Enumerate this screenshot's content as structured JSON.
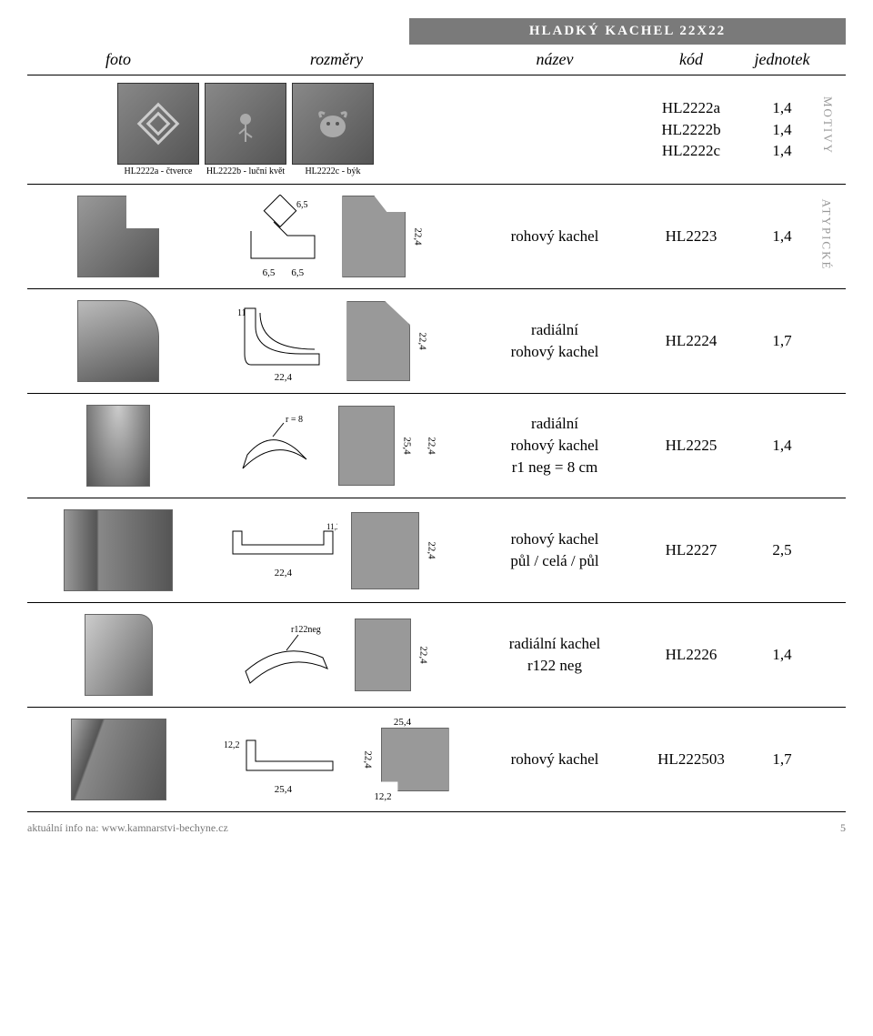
{
  "topTitle": "HLADKÝ KACHEL 22X22",
  "headers": {
    "foto": "foto",
    "rozmery": "rozměry",
    "nazev": "název",
    "kod": "kód",
    "jednotek": "jednotek"
  },
  "sideLabels": {
    "motivy": "MOTIVY",
    "atypicke": "ATYPICKÉ"
  },
  "row1": {
    "tiles": [
      {
        "caption": "HL2222a - čtverce"
      },
      {
        "caption": "HL2222b - luční květ"
      },
      {
        "caption": "HL2222c - býk"
      }
    ],
    "codes": [
      "HL2222a",
      "HL2222b",
      "HL2222c"
    ],
    "units": [
      "1,4",
      "1,4",
      "1,4"
    ]
  },
  "row2": {
    "dims": {
      "a": "6,5",
      "b": "6,5",
      "c": "6,5",
      "h": "22,4"
    },
    "name": "rohový kachel",
    "code": "HL2223",
    "unit": "1,4"
  },
  "row3": {
    "dims": {
      "w": "11,2",
      "base": "22,4",
      "h": "22,4"
    },
    "name": "radiální\nrohový kachel",
    "code": "HL2224",
    "unit": "1,7"
  },
  "row4": {
    "dims": {
      "r": "r = 8",
      "h1": "25,4",
      "h2": "22,4"
    },
    "name": "radiální\nrohový kachel\nr1 neg = 8 cm",
    "code": "HL2225",
    "unit": "1,4"
  },
  "row5": {
    "dims": {
      "base": "22,4",
      "side": "11,2",
      "h": "22,4"
    },
    "name": "rohový kachel\npůl / celá / půl",
    "code": "HL2227",
    "unit": "2,5"
  },
  "row6": {
    "dims": {
      "r": "r122neg",
      "h": "22,4"
    },
    "name": "radiální kachel\nr122 neg",
    "code": "HL2226",
    "unit": "1,4"
  },
  "row7": {
    "dims": {
      "w": "12,2",
      "base": "25,4",
      "top": "25,4",
      "h": "22,4",
      "bot": "12,2"
    },
    "name": "rohový kachel",
    "code": "HL222503",
    "unit": "1,7"
  },
  "footer": {
    "left": "aktuální info na: www.kamnarstvi-bechyne.cz",
    "page": "5"
  }
}
